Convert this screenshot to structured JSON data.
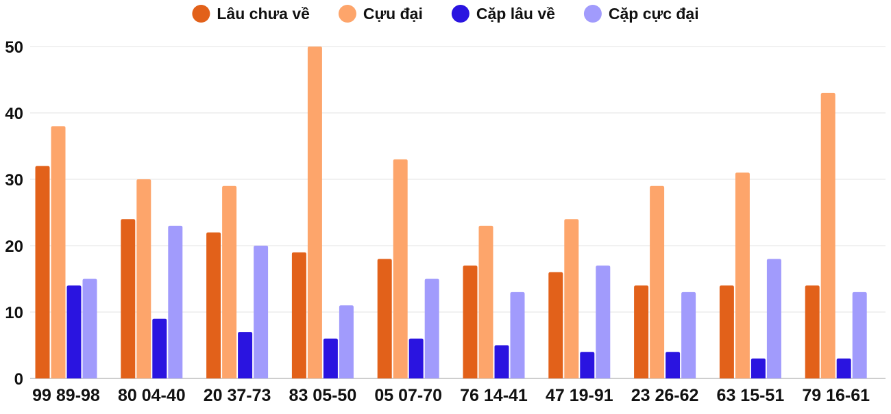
{
  "chart_data": {
    "type": "bar",
    "categories": [
      "99 89-98",
      "80 04-40",
      "20 37-73",
      "83 05-50",
      "05 07-70",
      "76 14-41",
      "47 19-91",
      "23 26-62",
      "63 15-51",
      "79 16-61"
    ],
    "series": [
      {
        "name": "Lâu chưa về",
        "color": "#e2611a",
        "values": [
          32,
          24,
          22,
          19,
          18,
          17,
          16,
          14,
          14,
          14
        ]
      },
      {
        "name": "Cựu đại",
        "color": "#fda56b",
        "values": [
          38,
          30,
          29,
          50,
          33,
          23,
          24,
          29,
          31,
          43
        ]
      },
      {
        "name": "Cặp lâu về",
        "color": "#2a14e0",
        "values": [
          14,
          9,
          7,
          6,
          6,
          5,
          4,
          4,
          3,
          3
        ]
      },
      {
        "name": "Cặp cực đại",
        "color": "#a19bfc",
        "values": [
          15,
          23,
          20,
          11,
          15,
          13,
          17,
          13,
          18,
          13
        ]
      }
    ],
    "y_ticks": [
      "0",
      "10",
      "20",
      "30",
      "40",
      "50"
    ],
    "ylim": [
      0,
      50
    ],
    "grid": true,
    "legend_position": "top-center"
  }
}
